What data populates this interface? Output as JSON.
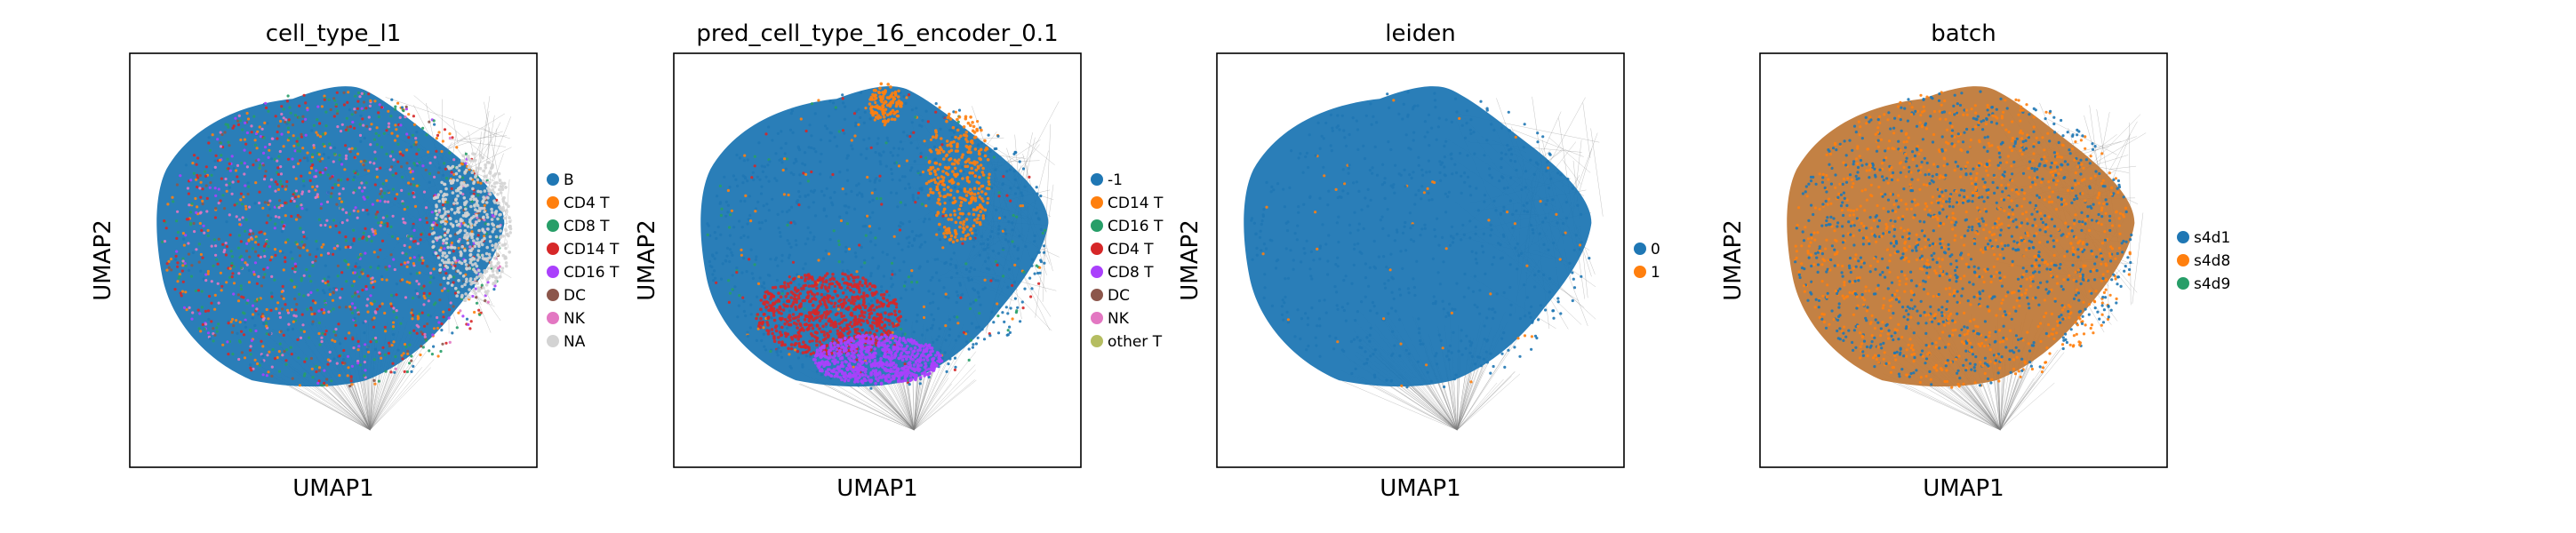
{
  "chart_data": [
    {
      "type": "scatter",
      "title": "cell_type_l1",
      "xlabel": "UMAP1",
      "ylabel": "UMAP2",
      "grid": false,
      "legend_placement": "right",
      "series": [
        {
          "name": "B",
          "color": "#1f77b4"
        },
        {
          "name": "CD4 T",
          "color": "#ff7f0e"
        },
        {
          "name": "CD8 T",
          "color": "#279e68"
        },
        {
          "name": "CD14 T",
          "color": "#d62728"
        },
        {
          "name": "CD16 T",
          "color": "#aa40fc"
        },
        {
          "name": "DC",
          "color": "#8c564b"
        },
        {
          "name": "NK",
          "color": "#e377c2"
        },
        {
          "name": "NA",
          "color": "#d3d3d3"
        }
      ]
    },
    {
      "type": "scatter",
      "title": "pred_cell_type_16_encoder_0.1",
      "xlabel": "UMAP1",
      "ylabel": "UMAP2",
      "grid": false,
      "legend_placement": "right",
      "series": [
        {
          "name": "-1",
          "color": "#1f77b4"
        },
        {
          "name": "CD14 T",
          "color": "#ff7f0e"
        },
        {
          "name": "CD16 T",
          "color": "#279e68"
        },
        {
          "name": "CD4 T",
          "color": "#d62728"
        },
        {
          "name": "CD8 T",
          "color": "#aa40fc"
        },
        {
          "name": "DC",
          "color": "#8c564b"
        },
        {
          "name": "NK",
          "color": "#e377c2"
        },
        {
          "name": "other T",
          "color": "#b5bd61"
        }
      ]
    },
    {
      "type": "scatter",
      "title": "leiden",
      "xlabel": "UMAP1",
      "ylabel": "UMAP2",
      "grid": false,
      "legend_placement": "right",
      "series": [
        {
          "name": "0",
          "color": "#1f77b4"
        },
        {
          "name": "1",
          "color": "#ff7f0e"
        }
      ]
    },
    {
      "type": "scatter",
      "title": "batch",
      "xlabel": "UMAP1",
      "ylabel": "UMAP2",
      "grid": false,
      "legend_placement": "right",
      "series": [
        {
          "name": "s4d1",
          "color": "#1f77b4"
        },
        {
          "name": "s4d8",
          "color": "#ff7f0e"
        },
        {
          "name": "s4d9",
          "color": "#279e68"
        }
      ]
    }
  ]
}
